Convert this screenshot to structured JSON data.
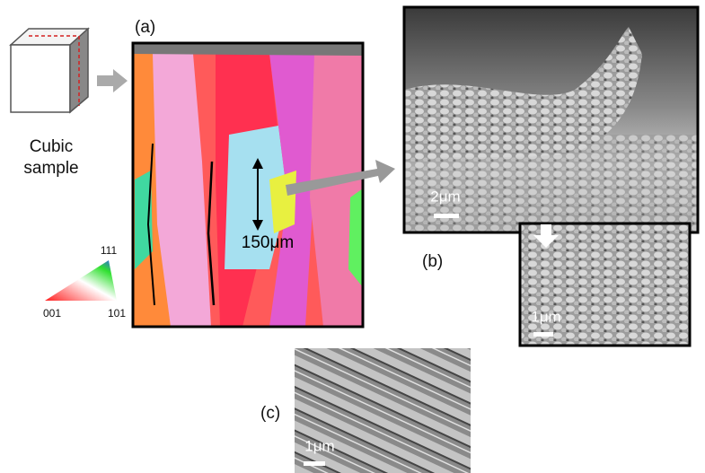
{
  "figure": {
    "panel_a": {
      "label": "(a)",
      "scale_label": "150μm"
    },
    "panel_b": {
      "label": "(b)",
      "scale_label": "2μm",
      "inset_scale_label": "1μm"
    },
    "panel_c": {
      "label": "(c)",
      "scale_label": "1μm"
    },
    "sample": {
      "line1": "Cubic",
      "line2": "sample"
    },
    "ipf_key": {
      "top": "111",
      "left": "001",
      "right": "101"
    }
  }
}
